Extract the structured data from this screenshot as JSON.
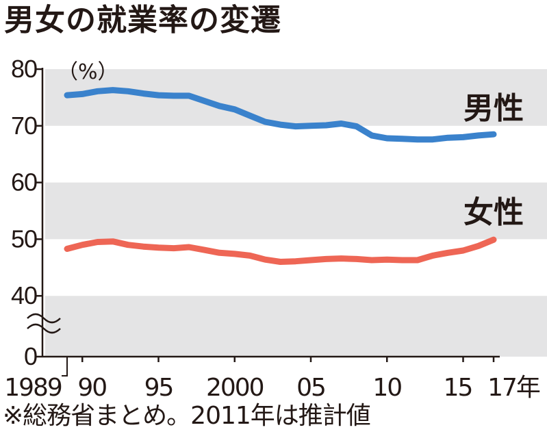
{
  "chart_data": {
    "type": "line",
    "title": "男女の就業率の変遷",
    "unit_label": "（%）",
    "y_tick_labels": [
      "0",
      "40",
      "50",
      "60",
      "70",
      "80"
    ],
    "x_tick_labels": [
      "1989",
      "90",
      "95",
      "2000",
      "05",
      "10",
      "15",
      "17年"
    ],
    "axis_break": true,
    "ylim": [
      40,
      80
    ],
    "xlim": [
      1989,
      2017
    ],
    "grid": "alternating horizontal bands",
    "series": [
      {
        "name": "男性",
        "color": "#3a82cc",
        "x": [
          1989,
          1990,
          1991,
          1992,
          1993,
          1994,
          1995,
          1996,
          1997,
          1998,
          1999,
          2000,
          2001,
          2002,
          2003,
          2004,
          2005,
          2006,
          2007,
          2008,
          2009,
          2010,
          2011,
          2012,
          2013,
          2014,
          2015,
          2016,
          2017
        ],
        "values": [
          75.4,
          75.6,
          76.1,
          76.3,
          76.1,
          75.7,
          75.4,
          75.3,
          75.3,
          74.4,
          73.5,
          72.9,
          71.8,
          70.7,
          70.2,
          69.9,
          70.0,
          70.1,
          70.4,
          69.9,
          68.3,
          67.8,
          67.7,
          67.6,
          67.6,
          67.9,
          68.0,
          68.3,
          68.5
        ]
      },
      {
        "name": "女性",
        "color": "#ee6655",
        "x": [
          1989,
          1990,
          1991,
          1992,
          1993,
          1994,
          1995,
          1996,
          1997,
          1998,
          1999,
          2000,
          2001,
          2002,
          2003,
          2004,
          2005,
          2006,
          2007,
          2008,
          2009,
          2010,
          2011,
          2012,
          2013,
          2014,
          2015,
          2016,
          2017
        ],
        "values": [
          48.3,
          49.0,
          49.5,
          49.6,
          49.0,
          48.7,
          48.5,
          48.4,
          48.6,
          48.1,
          47.6,
          47.4,
          47.1,
          46.4,
          46.0,
          46.1,
          46.3,
          46.5,
          46.6,
          46.5,
          46.3,
          46.4,
          46.3,
          46.3,
          47.1,
          47.6,
          48.0,
          48.8,
          49.9
        ]
      }
    ]
  },
  "footnote": "※総務省まとめ。2011年は推計値"
}
